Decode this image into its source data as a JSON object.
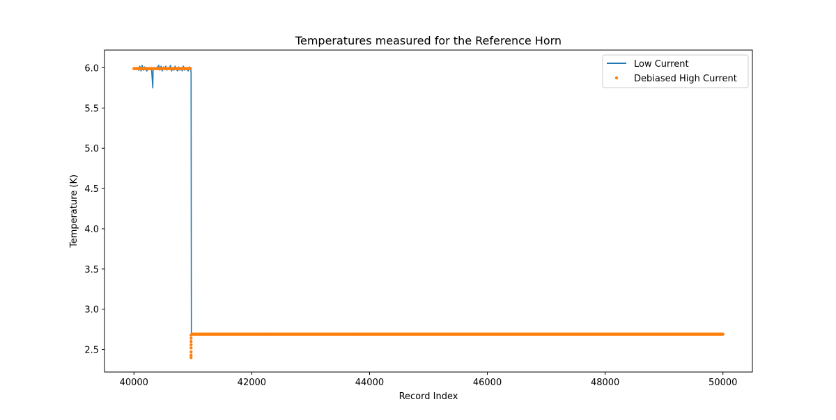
{
  "chart_data": {
    "type": "line",
    "title": "Temperatures measured for the Reference Horn",
    "xlabel": "Record Index",
    "ylabel": "Temperature (K)",
    "xlim": [
      39500,
      50500
    ],
    "ylim": [
      2.22,
      6.22
    ],
    "xticks": [
      40000,
      42000,
      44000,
      46000,
      48000,
      50000
    ],
    "xtick_labels": [
      "40000",
      "42000",
      "44000",
      "46000",
      "48000",
      "50000"
    ],
    "yticks": [
      2.5,
      3.0,
      3.5,
      4.0,
      4.5,
      5.0,
      5.5,
      6.0
    ],
    "ytick_labels": [
      "2.5",
      "3.0",
      "3.5",
      "4.0",
      "4.5",
      "5.0",
      "5.5",
      "6.0"
    ],
    "grid": false,
    "legend_position": "top-right",
    "legend": [
      "Low Current",
      "Debiased High Current"
    ],
    "series": [
      {
        "name": "Low Current",
        "kind": "line",
        "color": "#1f77b4",
        "x": [
          40000,
          40040,
          40080,
          40100,
          40120,
          40140,
          40160,
          40180,
          40200,
          40220,
          40240,
          40260,
          40280,
          40300,
          40320,
          40325,
          40330,
          40350,
          40380,
          40420,
          40440,
          40460,
          40480,
          40500,
          40520,
          40540,
          40560,
          40580,
          40600,
          40620,
          40640,
          40660,
          40680,
          40700,
          40720,
          40740,
          40760,
          40780,
          40800,
          40820,
          40840,
          40860,
          40880,
          40900,
          40920,
          40940,
          40960,
          40970,
          40975,
          40980,
          41000,
          42000,
          43000,
          44000,
          45000,
          46000,
          47000,
          48000,
          49000,
          50000
        ],
        "y": [
          5.98,
          5.99,
          5.97,
          6.02,
          5.96,
          6.03,
          5.97,
          6.01,
          5.98,
          5.96,
          6.0,
          5.98,
          5.99,
          5.97,
          5.75,
          5.97,
          5.99,
          6.0,
          5.98,
          6.03,
          5.97,
          6.02,
          5.96,
          6.01,
          5.98,
          6.02,
          5.97,
          6.0,
          5.98,
          6.03,
          5.96,
          6.0,
          5.97,
          6.02,
          5.98,
          5.96,
          6.01,
          5.97,
          6.0,
          5.96,
          6.02,
          5.97,
          6.0,
          5.98,
          5.96,
          6.01,
          5.99,
          5.94,
          2.7,
          2.69,
          2.69,
          2.69,
          2.69,
          2.69,
          2.69,
          2.69,
          2.69,
          2.69,
          2.69,
          2.69
        ]
      },
      {
        "name": "Debiased High Current",
        "kind": "scatter",
        "color": "#ff7f0e",
        "x_start": 40000,
        "x_end": 40960,
        "x_step": 10,
        "y_value": 5.99,
        "x_start_2": 40990,
        "x_end_2": 50000,
        "x_step_2": 10,
        "y_value_2": 2.69,
        "x_drop": [
          40970,
          40970,
          40970,
          40970,
          40970,
          40970,
          40970,
          40970
        ],
        "y_drop": [
          2.4,
          2.43,
          2.47,
          2.52,
          2.56,
          2.6,
          2.64,
          2.68
        ]
      }
    ]
  }
}
